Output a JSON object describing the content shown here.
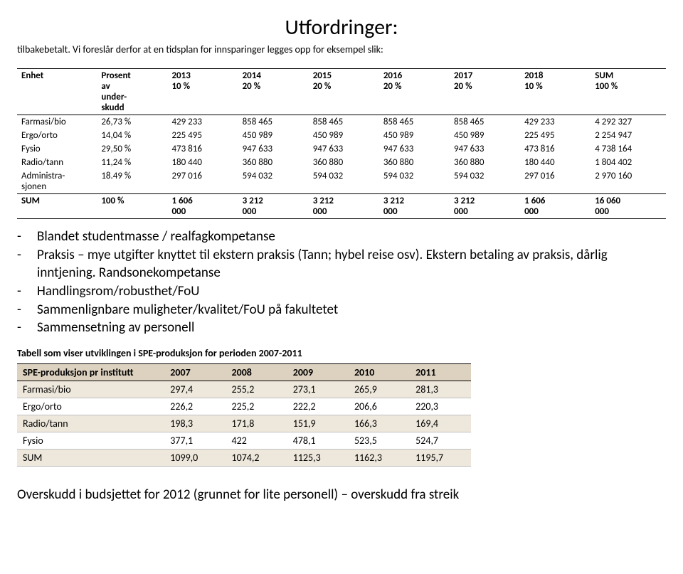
{
  "title": "Utfordringer:",
  "intro": "tilbakebetalt. Vi foreslår derfor at en tidsplan for innsparinger legges opp for eksempel slik:",
  "table1": {
    "headers": [
      {
        "l1": "Enhet",
        "l2": "",
        "l3": ""
      },
      {
        "l1": "Prosent",
        "l2": "av",
        "l3": "under-",
        "l4": "skudd"
      },
      {
        "l1": "2013",
        "l2": "10 %",
        "l3": ""
      },
      {
        "l1": "2014",
        "l2": "20 %",
        "l3": ""
      },
      {
        "l1": "2015",
        "l2": "20 %",
        "l3": ""
      },
      {
        "l1": "2016",
        "l2": "20 %",
        "l3": ""
      },
      {
        "l1": "2017",
        "l2": "20 %",
        "l3": ""
      },
      {
        "l1": "2018",
        "l2": "10 %",
        "l3": ""
      },
      {
        "l1": "SUM",
        "l2": "100 %",
        "l3": ""
      }
    ],
    "rows": [
      {
        "c": [
          "Farmasi/bio",
          "26,73 %",
          "429 233",
          "858 465",
          "858 465",
          "858 465",
          "858 465",
          "429 233",
          "4 292 327"
        ]
      },
      {
        "c": [
          "Ergo/orto",
          "14,04 %",
          "225 495",
          "450 989",
          "450 989",
          "450 989",
          "450 989",
          "225 495",
          "2 254 947"
        ]
      },
      {
        "c": [
          "Fysio",
          "29,50 %",
          "473 816",
          "947 633",
          "947 633",
          "947 633",
          "947 633",
          "473 816",
          "4 738 164"
        ]
      },
      {
        "c": [
          "Radio/tann",
          "11,24 %",
          "180 440",
          "360 880",
          "360 880",
          "360 880",
          "360 880",
          "180 440",
          "1 804 402"
        ]
      },
      {
        "c": [
          "Administra-\nsjonen",
          "18.49 %",
          "297 016",
          "594 032",
          "594 032",
          "594 032",
          "594 032",
          "297 016",
          "2 970 160"
        ]
      }
    ],
    "sum": {
      "label": "SUM",
      "pct": "100 %",
      "cells": [
        {
          "a": "1 606",
          "b": "000"
        },
        {
          "a": "3 212",
          "b": "000"
        },
        {
          "a": "3 212",
          "b": "000"
        },
        {
          "a": "3 212",
          "b": "000"
        },
        {
          "a": "3 212",
          "b": "000"
        },
        {
          "a": "1 606",
          "b": "000"
        },
        {
          "a": "16 060",
          "b": "000"
        }
      ]
    }
  },
  "bullets": [
    "Blandet studentmasse / realfagkompetanse",
    "Praksis – mye utgifter knyttet til ekstern praksis (Tann; hybel reise osv). Ekstern betaling av praksis, dårlig inntjening. Randsonekompetanse",
    "Handlingsrom/robusthet/FoU",
    "Sammenlignbare muligheter/kvalitet/FoU på fakultetet",
    "Sammensetning av personell"
  ],
  "caption2": "Tabell som viser utviklingen i SPE-produksjon for perioden 2007-2011",
  "table2": {
    "headers": [
      "SPE-produksjon pr institutt",
      "2007",
      "2008",
      "2009",
      "2010",
      "2011"
    ],
    "rows": [
      [
        "Farmasi/bio",
        "297,4",
        "255,2",
        "273,1",
        "265,9",
        "281,3"
      ],
      [
        "Ergo/orto",
        "226,2",
        "225,2",
        "222,2",
        "206,6",
        "220,3"
      ],
      [
        "Radio/tann",
        "198,3",
        "171,8",
        "151,9",
        "166,3",
        "169,4"
      ],
      [
        "Fysio",
        "377,1",
        "422",
        "478,1",
        "523,5",
        "524,7"
      ],
      [
        "SUM",
        "1099,0",
        "1074,2",
        "1125,3",
        "1162,3",
        "1195,7"
      ]
    ]
  },
  "footer": "Overskudd i budsjettet for 2012 (grunnet for lite personell) – overskudd fra streik"
}
